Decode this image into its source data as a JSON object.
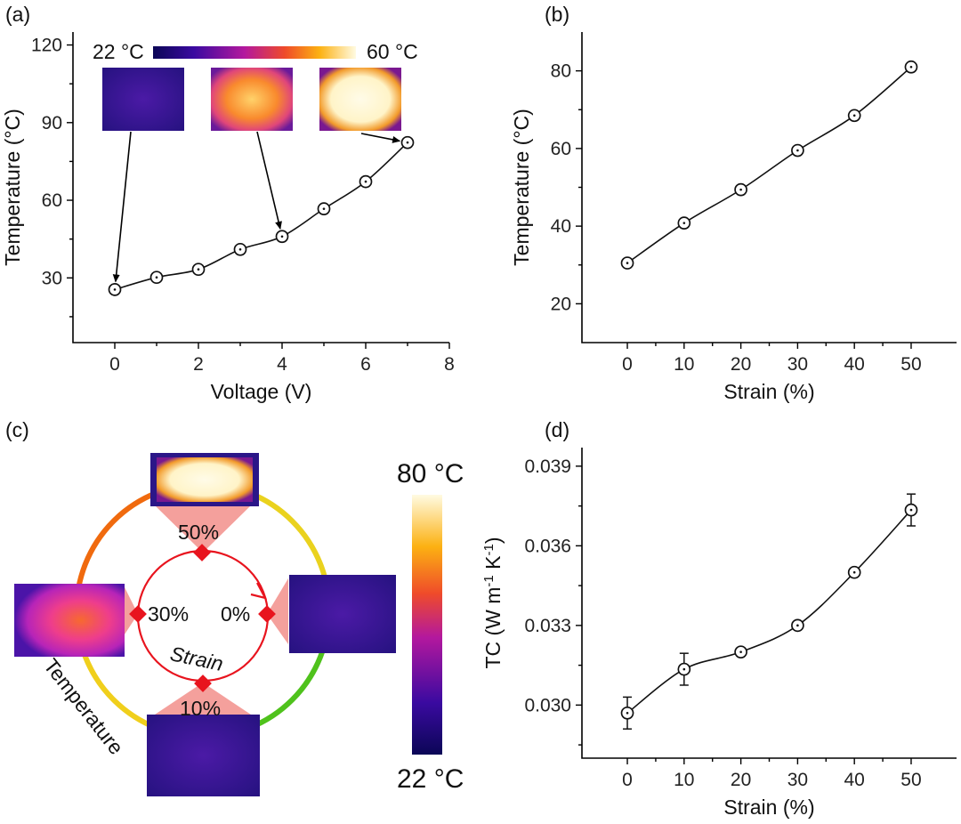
{
  "chart_data": [
    {
      "panel": "(a)",
      "type": "line",
      "xlabel": "Voltage (V)",
      "ylabel": "Temperature (°C)",
      "xlim": [
        -1,
        8
      ],
      "ylim": [
        5,
        125
      ],
      "xticks": [
        0,
        2,
        4,
        6,
        8
      ],
      "yticks": [
        30,
        60,
        90,
        120
      ],
      "x": [
        0,
        1,
        2,
        3,
        4,
        5,
        6,
        7
      ],
      "y": [
        25.5,
        30.2,
        33.3,
        41.0,
        46.0,
        56.7,
        67.2,
        82.3
      ],
      "colorbar": {
        "min_label": "22 °C",
        "max_label": "60 °C"
      },
      "inset_targets": [
        0,
        4,
        7
      ],
      "grid": false
    },
    {
      "panel": "(b)",
      "type": "line",
      "xlabel": "Strain (%)",
      "ylabel": "Temperature (°C)",
      "xlim": [
        -8,
        58
      ],
      "ylim": [
        10,
        90
      ],
      "xticks": [
        0,
        10,
        20,
        30,
        40,
        50
      ],
      "yticks": [
        20,
        40,
        60,
        80
      ],
      "x": [
        0,
        10,
        20,
        30,
        40,
        50
      ],
      "y": [
        30.5,
        40.8,
        49.4,
        59.5,
        68.5,
        81.0
      ],
      "grid": false
    },
    {
      "panel": "(d)",
      "type": "line",
      "xlabel": "Strain (%)",
      "ylabel": "TC (W m-1 K-1)",
      "xlim": [
        -8,
        58
      ],
      "ylim": [
        0.028,
        0.0397
      ],
      "xticks": [
        0,
        10,
        20,
        30,
        40,
        50
      ],
      "yticks": [
        0.03,
        0.033,
        0.036,
        0.039
      ],
      "ytick_labels": [
        "0.030",
        "0.033",
        "0.036",
        "0.039"
      ],
      "x": [
        0,
        10,
        20,
        30,
        40,
        50
      ],
      "y": [
        0.0297,
        0.03135,
        0.032,
        0.033,
        0.035,
        0.03735
      ],
      "yerr": [
        0.0006,
        0.0006,
        0.0001,
        0.0001,
        0.0001,
        0.0006
      ],
      "grid": false
    }
  ],
  "panels": {
    "a": "(a)",
    "b": "(b)",
    "c": "(c)",
    "d": "(d)"
  },
  "diagram_c": {
    "strain_labels": [
      "50%",
      "30%",
      "0%",
      "10%"
    ],
    "center_label": "Strain",
    "ring_label": "Temperature",
    "colorbar_max": "80 °C",
    "colorbar_min": "22 °C",
    "ring_colors": [
      "#ff6a00",
      "#f2d21a",
      "#f2d21a",
      "#56c81e"
    ]
  },
  "colors": {
    "accent_red": "#e8141e",
    "cone": "#f4a09c"
  }
}
